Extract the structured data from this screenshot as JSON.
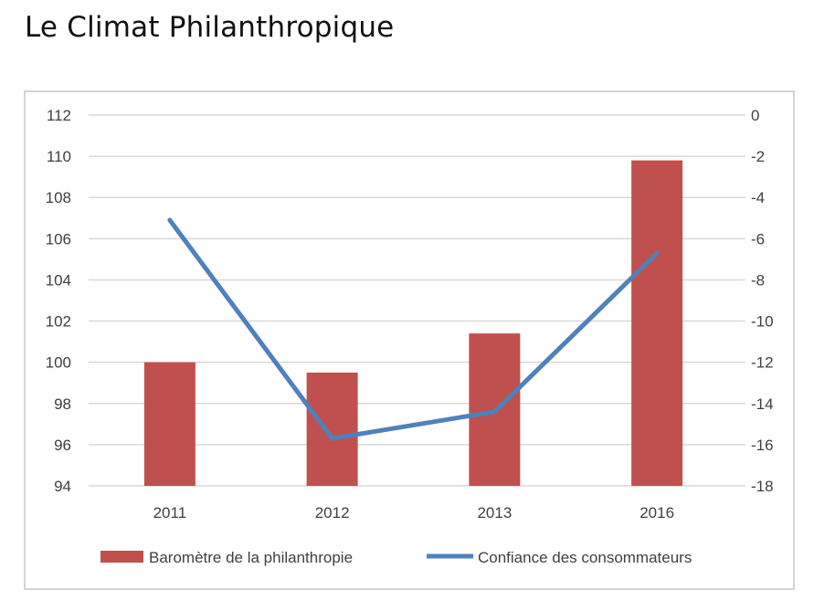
{
  "page": {
    "title": "Le Climat Philanthropique"
  },
  "colors": {
    "bar": "#c0504d",
    "line": "#4f81bd",
    "grid": "#d9d9d9",
    "text": "#404040"
  },
  "chart_data": {
    "type": "bar",
    "categories": [
      "2011",
      "2012",
      "2013",
      "2016"
    ],
    "series": [
      {
        "name": "Baromètre de la philanthropie",
        "type": "bar",
        "axis": "left",
        "values": [
          100,
          99.5,
          101.4,
          109.8
        ]
      },
      {
        "name": "Confiance des consommateurs",
        "type": "line",
        "axis": "right",
        "values": [
          -5.1,
          -15.7,
          -14.4,
          -6.7
        ]
      }
    ],
    "y_left": {
      "min": 94,
      "max": 112,
      "step": 2,
      "ticks": [
        "94",
        "96",
        "98",
        "100",
        "102",
        "104",
        "106",
        "108",
        "110",
        "112"
      ]
    },
    "y_right": {
      "min": -18,
      "max": 0,
      "step": 2,
      "ticks": [
        "-18",
        "-16",
        "-14",
        "-12",
        "-10",
        "-8",
        "-6",
        "-4",
        "-2",
        "0"
      ]
    },
    "grid": true,
    "legend_position": "bottom"
  }
}
